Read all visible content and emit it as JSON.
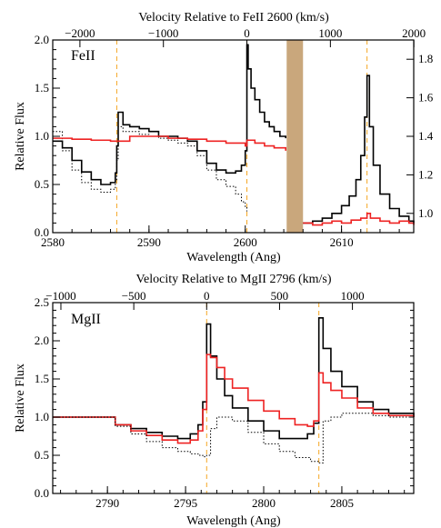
{
  "chart_data": [
    {
      "type": "line",
      "label": "FeII",
      "xlabel": "Wavelength (Ang)",
      "ylabel": "Relative Flux",
      "top_axis_label": "Velocity Relative to FeII 2600 (km/s)",
      "xlim": [
        2580,
        2617.5
      ],
      "ylim": [
        0.0,
        2.0
      ],
      "right_ylim": [
        0.9,
        1.9
      ],
      "x_ticks": [
        "2580",
        "2590",
        "2600",
        "2610"
      ],
      "y_ticks": [
        "0.0",
        "0.5",
        "1.0",
        "1.5",
        "2.0"
      ],
      "right_y_ticks": [
        "1.0",
        "1.2",
        "1.4",
        "1.6",
        "1.8"
      ],
      "top_ticks": [
        "−2000",
        "−1000",
        "0",
        "1000",
        "2000"
      ],
      "top_tick_values": [
        -2000,
        -1000,
        0,
        1000,
        2000
      ],
      "ref_wavelength": 2600.17,
      "vlines": [
        2586.65,
        2600.17,
        2612.65
      ],
      "shaded_band": [
        2604.3,
        2606.0
      ],
      "series": [
        {
          "style": "solid",
          "color": "#000000",
          "x": [
            2580,
            2581,
            2582,
            2583,
            2584,
            2585,
            2586,
            2586.5,
            2586.65,
            2586.8,
            2587.3,
            2588,
            2589,
            2590,
            2591,
            2592,
            2593,
            2594,
            2595,
            2596,
            2597,
            2598,
            2599,
            2599.6,
            2600.0,
            2600.17,
            2600.3,
            2600.6,
            2601,
            2601.5,
            2602,
            2602.5,
            2603,
            2603.6,
            2604.2
          ],
          "y": [
            0.95,
            0.88,
            0.75,
            0.63,
            0.55,
            0.5,
            0.52,
            0.62,
            0.9,
            1.25,
            1.12,
            1.1,
            1.08,
            1.05,
            1.0,
            1.0,
            0.98,
            0.95,
            0.85,
            0.72,
            0.65,
            0.62,
            0.64,
            0.7,
            0.85,
            1.95,
            1.7,
            1.5,
            1.38,
            1.25,
            1.15,
            1.1,
            1.05,
            1.0,
            0.98
          ]
        },
        {
          "style": "solid",
          "color": "#000000",
          "x": [
            2606.0,
            2607,
            2608,
            2609,
            2610,
            2610.8,
            2611.5,
            2612.0,
            2612.4,
            2612.65,
            2612.9,
            2613.3,
            2614,
            2615,
            2616,
            2617,
            2617.5
          ],
          "y": [
            0.1,
            0.12,
            0.15,
            0.2,
            0.28,
            0.38,
            0.55,
            0.8,
            1.2,
            1.63,
            1.1,
            0.7,
            0.4,
            0.25,
            0.17,
            0.12,
            0.1
          ]
        },
        {
          "style": "dotted",
          "color": "#000000",
          "x": [
            2580,
            2581,
            2582,
            2583,
            2584,
            2585,
            2586,
            2586.5,
            2586.65,
            2586.8,
            2587.3,
            2588,
            2589,
            2590,
            2591,
            2592,
            2593,
            2594,
            2595,
            2596,
            2597,
            2598,
            2599,
            2599.6,
            2600.0,
            2600.17
          ],
          "y": [
            1.05,
            0.85,
            0.65,
            0.52,
            0.45,
            0.42,
            0.45,
            0.55,
            0.75,
            1.1,
            1.05,
            1.05,
            1.02,
            1.0,
            0.98,
            0.96,
            0.93,
            0.9,
            0.8,
            0.65,
            0.55,
            0.48,
            0.4,
            0.32,
            0.26,
            0.22
          ]
        },
        {
          "style": "solid",
          "color": "#ee2222",
          "x": [
            2580,
            2582,
            2584,
            2586,
            2588,
            2590,
            2592,
            2594,
            2596,
            2598,
            2600,
            2600.17,
            2601,
            2602,
            2603,
            2604.2
          ],
          "y": [
            0.98,
            0.97,
            0.96,
            0.95,
            1.0,
            1.0,
            0.98,
            0.97,
            0.95,
            0.93,
            0.9,
            0.96,
            0.93,
            0.9,
            0.88,
            0.85
          ]
        },
        {
          "style": "solid",
          "color": "#ee2222",
          "x": [
            2606.0,
            2607,
            2608,
            2609,
            2610,
            2611,
            2612,
            2612.65,
            2613,
            2614,
            2615,
            2616,
            2617,
            2617.5
          ],
          "y": [
            0.1,
            0.08,
            0.1,
            0.12,
            0.1,
            0.13,
            0.15,
            0.2,
            0.15,
            0.12,
            0.1,
            0.12,
            0.1,
            0.08
          ]
        }
      ]
    },
    {
      "type": "line",
      "label": "MgII",
      "xlabel": "Wavelength (Ang)",
      "ylabel": "Relative Flux",
      "top_axis_label": "Velocity Relative to MgII 2796 (km/s)",
      "xlim": [
        2786.5,
        2809.6
      ],
      "ylim": [
        0.0,
        2.5
      ],
      "x_ticks": [
        "2790",
        "2795",
        "2800",
        "2805"
      ],
      "x_tick_values": [
        2790,
        2795,
        2800,
        2805
      ],
      "y_ticks": [
        "0.0",
        "0.5",
        "1.0",
        "1.5",
        "2.0",
        "2.5"
      ],
      "top_ticks": [
        "−1000",
        "−500",
        "0",
        "500",
        "1000"
      ],
      "top_tick_values": [
        -1000,
        -500,
        0,
        500,
        1000
      ],
      "ref_wavelength": 2796.35,
      "vlines": [
        2796.35,
        2803.53
      ],
      "series": [
        {
          "style": "solid",
          "color": "#000000",
          "x": [
            2786.5,
            2788,
            2789.5,
            2790.5,
            2791.5,
            2792.5,
            2793.5,
            2794.5,
            2795.3,
            2795.8,
            2796.1,
            2796.35,
            2796.6,
            2797,
            2797.5,
            2798,
            2799,
            2800,
            2801,
            2802,
            2802.8,
            2803.2,
            2803.53,
            2803.8,
            2804.3,
            2805,
            2806,
            2807,
            2808,
            2809.6
          ],
          "y": [
            1.0,
            1.0,
            1.0,
            0.9,
            0.85,
            0.8,
            0.75,
            0.72,
            0.78,
            0.9,
            1.2,
            2.22,
            1.8,
            1.5,
            1.28,
            1.12,
            0.95,
            0.82,
            0.72,
            0.72,
            0.78,
            0.92,
            2.3,
            1.9,
            1.6,
            1.4,
            1.2,
            1.1,
            1.05,
            1.0
          ]
        },
        {
          "style": "solid",
          "color": "#ee2222",
          "x": [
            2786.5,
            2788,
            2789.5,
            2790.5,
            2791.5,
            2792.5,
            2793.5,
            2794.5,
            2795.3,
            2795.8,
            2796.1,
            2796.35,
            2796.6,
            2797,
            2797.5,
            2798,
            2799,
            2800,
            2801,
            2802,
            2802.8,
            2803.2,
            2803.53,
            2803.8,
            2804.3,
            2805,
            2806,
            2807,
            2808,
            2809.6
          ],
          "y": [
            1.0,
            1.0,
            1.0,
            0.9,
            0.82,
            0.76,
            0.7,
            0.66,
            0.7,
            0.82,
            1.1,
            1.82,
            1.78,
            1.65,
            1.5,
            1.38,
            1.22,
            1.08,
            0.98,
            0.9,
            0.88,
            0.95,
            1.58,
            1.45,
            1.35,
            1.25,
            1.12,
            1.05,
            1.02,
            1.0
          ]
        },
        {
          "style": "dotted",
          "color": "#000000",
          "x": [
            2786.5,
            2788,
            2789.5,
            2790.5,
            2791.5,
            2792.5,
            2793.5,
            2794.5,
            2795.3,
            2795.8,
            2796.1,
            2796.35,
            2796.6,
            2797,
            2798,
            2799,
            2800,
            2801,
            2802,
            2803,
            2803.53,
            2803.8,
            2804.3,
            2805,
            2806,
            2807,
            2808,
            2809.6
          ],
          "y": [
            1.0,
            1.0,
            1.0,
            0.88,
            0.78,
            0.68,
            0.6,
            0.55,
            0.52,
            0.5,
            0.48,
            0.5,
            0.85,
            1.0,
            0.95,
            0.8,
            0.65,
            0.55,
            0.47,
            0.42,
            0.4,
            0.95,
            1.0,
            1.05,
            1.05,
            1.02,
            1.0,
            1.0
          ]
        }
      ]
    }
  ]
}
